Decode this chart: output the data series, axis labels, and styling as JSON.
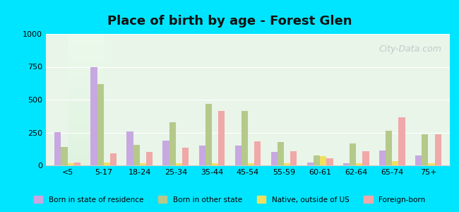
{
  "title": "Place of birth by age - Forest Glen",
  "categories": [
    "<5",
    "5-17",
    "18-24",
    "25-34",
    "35-44",
    "45-54",
    "55-59",
    "60-61",
    "62-64",
    "65-74",
    "75+"
  ],
  "series": {
    "Born in state of residence": [
      255,
      750,
      260,
      190,
      150,
      150,
      100,
      20,
      15,
      115,
      75
    ],
    "Born in other state": [
      140,
      620,
      155,
      330,
      470,
      415,
      175,
      75,
      165,
      265,
      235
    ],
    "Native, outside of US": [
      15,
      20,
      15,
      15,
      15,
      15,
      15,
      70,
      15,
      30,
      15
    ],
    "Foreign-born": [
      20,
      90,
      100,
      135,
      415,
      185,
      110,
      55,
      110,
      365,
      235
    ]
  },
  "colors": {
    "Born in state of residence": "#c8a8e0",
    "Born in other state": "#b5c98a",
    "Native, outside of US": "#f0e060",
    "Foreign-born": "#f0a8a8"
  },
  "ylim": [
    0,
    1000
  ],
  "yticks": [
    0,
    250,
    500,
    750,
    1000
  ],
  "background_color": "#e8f5e8",
  "outer_background": "#00e5ff",
  "watermark": "City-Data.com"
}
